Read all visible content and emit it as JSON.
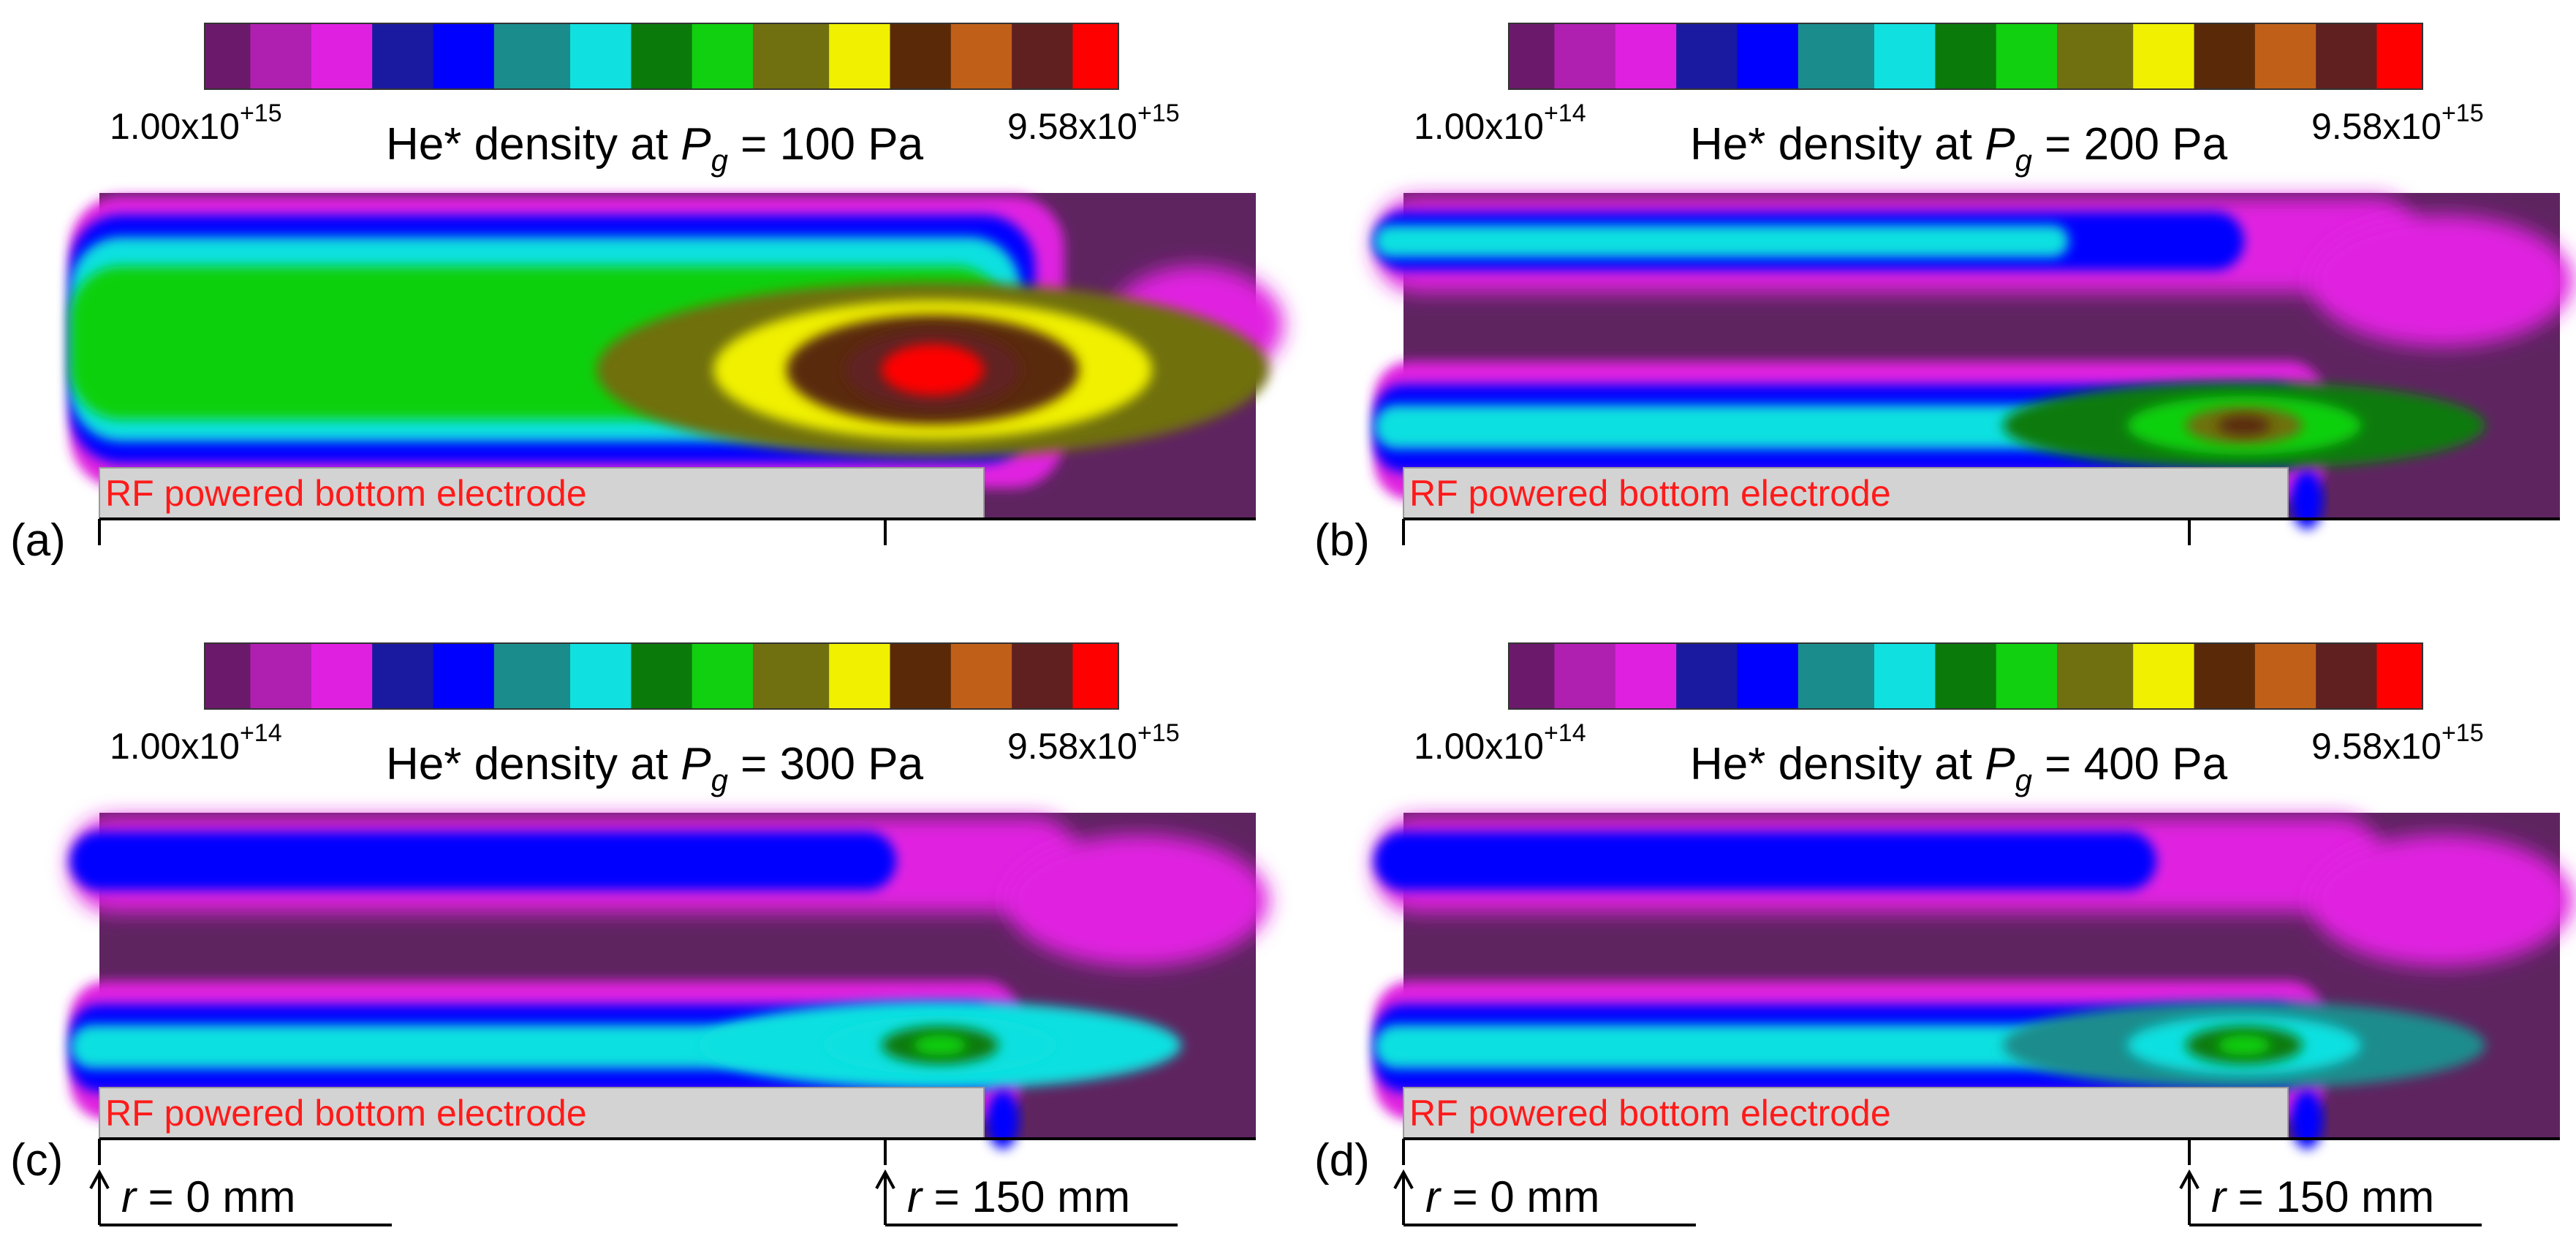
{
  "chart_data": [
    {
      "type": "heatmap",
      "panel": "(a)",
      "title": "He* density at Pg = 100 Pa",
      "title_parts": {
        "prefix": "He* density at ",
        "var": "P",
        "sub": "g",
        "suffix": " = 100 Pa"
      },
      "colorbar": {
        "min": {
          "mantissa": "1.00x10",
          "exp": "+15"
        },
        "max": {
          "mantissa": "9.58x10",
          "exp": "+15"
        }
      },
      "electrode_label": "RF powered bottom electrode",
      "peak_location": "near electrode edge, mid-gap",
      "peak_level": 1.0
    },
    {
      "type": "heatmap",
      "panel": "(b)",
      "title": "He* density at Pg = 200 Pa",
      "title_parts": {
        "prefix": "He* density at ",
        "var": "P",
        "sub": "g",
        "suffix": " = 200 Pa"
      },
      "colorbar": {
        "min": {
          "mantissa": "1.00x10",
          "exp": "+14"
        },
        "max": {
          "mantissa": "9.58x10",
          "exp": "+15"
        }
      },
      "electrode_label": "RF powered bottom electrode",
      "peak_location": "bottom sheath near electrode edge",
      "peak_level": 0.55
    },
    {
      "type": "heatmap",
      "panel": "(c)",
      "title": "He* density at Pg = 300 Pa",
      "title_parts": {
        "prefix": "He* density at ",
        "var": "P",
        "sub": "g",
        "suffix": " = 300 Pa"
      },
      "colorbar": {
        "min": {
          "mantissa": "1.00x10",
          "exp": "+14"
        },
        "max": {
          "mantissa": "9.58x10",
          "exp": "+15"
        }
      },
      "electrode_label": "RF powered bottom electrode",
      "r_labels": {
        "left": {
          "var": "r",
          "text": " = 0 mm"
        },
        "right": {
          "var": "r",
          "text": " = 150 mm"
        }
      },
      "peak_location": "bottom sheath near electrode edge",
      "peak_level": 0.4
    },
    {
      "type": "heatmap",
      "panel": "(d)",
      "title": "He* density at Pg = 400 Pa",
      "title_parts": {
        "prefix": "He* density at ",
        "var": "P",
        "sub": "g",
        "suffix": " = 400 Pa"
      },
      "colorbar": {
        "min": {
          "mantissa": "1.00x10",
          "exp": "+14"
        },
        "max": {
          "mantissa": "9.58x10",
          "exp": "+15"
        }
      },
      "electrode_label": "RF powered bottom electrode",
      "r_labels": {
        "left": {
          "var": "r",
          "text": " = 0 mm"
        },
        "right": {
          "var": "r",
          "text": " = 150 mm"
        }
      },
      "peak_location": "bottom sheath near electrode edge",
      "peak_level": 0.35
    }
  ],
  "colormap": [
    "#6b1a6b",
    "#b020b0",
    "#e020e0",
    "#1a1aa0",
    "#0000ff",
    "#1a8c8c",
    "#10e0e0",
    "#0a7a0a",
    "#10d010",
    "#707010",
    "#f0f000",
    "#5a2a08",
    "#c06018",
    "#602020",
    "#ff0000"
  ],
  "colors": {
    "background_field": "#5e2460",
    "electrode_fill": "#d3d3d3",
    "electrode_text": "#ff1a1a"
  }
}
